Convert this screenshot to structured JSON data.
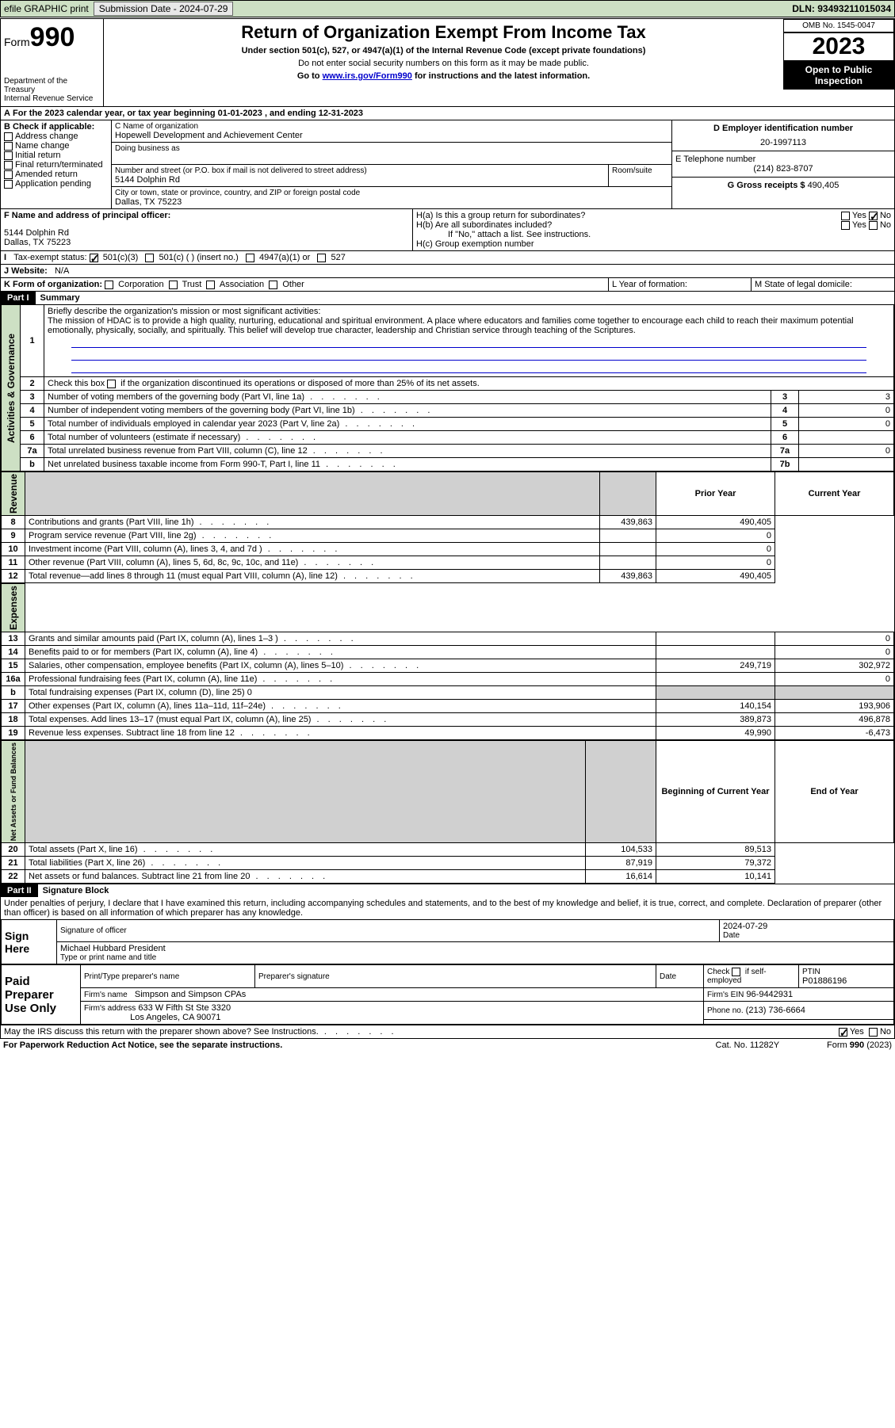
{
  "topbar": {
    "efile": "efile GRAPHIC print",
    "submission_label": "Submission Date - 2024-07-29",
    "dln": "DLN: 93493211015034"
  },
  "header": {
    "form_label": "Form",
    "form_number": "990",
    "title": "Return of Organization Exempt From Income Tax",
    "subtitle1": "Under section 501(c), 527, or 4947(a)(1) of the Internal Revenue Code (except private foundations)",
    "subtitle2": "Do not enter social security numbers on this form as it may be made public.",
    "subtitle3": "Go to www.irs.gov/Form990 for instructions and the latest information.",
    "dept": "Department of the Treasury",
    "irs": "Internal Revenue Service",
    "omb": "OMB No. 1545-0047",
    "year": "2023",
    "public1": "Open to Public",
    "public2": "Inspection"
  },
  "taxyear": "For the 2023 calendar year, or tax year beginning 01-01-2023    , and ending 12-31-2023",
  "box_b": {
    "label": "B Check if applicable:",
    "items": [
      "Address change",
      "Name change",
      "Initial return",
      "Final return/terminated",
      "Amended return",
      "Application pending"
    ]
  },
  "box_c": {
    "name_label": "C Name of organization",
    "name": "Hopewell Development and Achievement Center",
    "dba_label": "Doing business as",
    "addr_label": "Number and street (or P.O. box if mail is not delivered to street address)",
    "room_label": "Room/suite",
    "addr": "5144 Dolphin Rd",
    "city_label": "City or town, state or province, country, and ZIP or foreign postal code",
    "city": "Dallas, TX  75223"
  },
  "box_d": {
    "label": "D Employer identification number",
    "value": "20-1997113"
  },
  "box_e": {
    "label": "E Telephone number",
    "value": "(214) 823-8707"
  },
  "box_g": {
    "label": "G Gross receipts $",
    "value": "490,405"
  },
  "box_f": {
    "label": "F  Name and address of principal officer:",
    "addr1": "5144 Dolphin Rd",
    "addr2": "Dallas, TX  75223"
  },
  "box_h": {
    "ha": "H(a)  Is this a group return for subordinates?",
    "hb": "H(b)  Are all subordinates included?",
    "hb_note": "If \"No,\" attach a list. See instructions.",
    "hc": "H(c)  Group exemption number",
    "yes": "Yes",
    "no": "No"
  },
  "box_i": {
    "label": "Tax-exempt status:",
    "opts": [
      "501(c)(3)",
      "501(c) (  ) (insert no.)",
      "4947(a)(1) or",
      "527"
    ]
  },
  "box_j": {
    "label": "J   Website:",
    "value": "N/A"
  },
  "box_k": {
    "label": "K Form of organization:",
    "opts": [
      "Corporation",
      "Trust",
      "Association",
      "Other"
    ]
  },
  "box_l": "L Year of formation:",
  "box_m": "M State of legal domicile:",
  "part1": {
    "hdr": "Part I",
    "title": "Summary",
    "q1_label": "Briefly describe the organization's mission or most significant activities:",
    "mission": "The mission of HDAC is to provide a high quality, nurturing, educational and spiritual environment. A place where educators and families come together to encourage each child to reach their maximum potential emotionally, physically, socially, and spiritually. This belief will develop true character, leadership and Christian service through teaching of the Scriptures.",
    "q2": "Check this box        if the organization discontinued its operations or disposed of more than 25% of its net assets.",
    "vlabel_ag": "Activities & Governance",
    "vlabel_rev": "Revenue",
    "vlabel_exp": "Expenses",
    "vlabel_na": "Net Assets or Fund Balances",
    "rows_ag": [
      {
        "n": "3",
        "t": "Number of voting members of the governing body (Part VI, line 1a)",
        "r": "3",
        "v": "3"
      },
      {
        "n": "4",
        "t": "Number of independent voting members of the governing body (Part VI, line 1b)",
        "r": "4",
        "v": "0"
      },
      {
        "n": "5",
        "t": "Total number of individuals employed in calendar year 2023 (Part V, line 2a)",
        "r": "5",
        "v": "0"
      },
      {
        "n": "6",
        "t": "Total number of volunteers (estimate if necessary)",
        "r": "6",
        "v": ""
      },
      {
        "n": "7a",
        "t": "Total unrelated business revenue from Part VIII, column (C), line 12",
        "r": "7a",
        "v": "0"
      },
      {
        "n": "b",
        "t": "Net unrelated business taxable income from Form 990-T, Part I, line 11",
        "r": "7b",
        "v": ""
      }
    ],
    "col_prior": "Prior Year",
    "col_current": "Current Year",
    "rows_rev": [
      {
        "n": "8",
        "t": "Contributions and grants (Part VIII, line 1h)",
        "p": "439,863",
        "c": "490,405"
      },
      {
        "n": "9",
        "t": "Program service revenue (Part VIII, line 2g)",
        "p": "",
        "c": "0"
      },
      {
        "n": "10",
        "t": "Investment income (Part VIII, column (A), lines 3, 4, and 7d )",
        "p": "",
        "c": "0"
      },
      {
        "n": "11",
        "t": "Other revenue (Part VIII, column (A), lines 5, 6d, 8c, 9c, 10c, and 11e)",
        "p": "",
        "c": "0"
      },
      {
        "n": "12",
        "t": "Total revenue—add lines 8 through 11 (must equal Part VIII, column (A), line 12)",
        "p": "439,863",
        "c": "490,405"
      }
    ],
    "rows_exp": [
      {
        "n": "13",
        "t": "Grants and similar amounts paid (Part IX, column (A), lines 1–3 )",
        "p": "",
        "c": "0"
      },
      {
        "n": "14",
        "t": "Benefits paid to or for members (Part IX, column (A), line 4)",
        "p": "",
        "c": "0"
      },
      {
        "n": "15",
        "t": "Salaries, other compensation, employee benefits (Part IX, column (A), lines 5–10)",
        "p": "249,719",
        "c": "302,972"
      },
      {
        "n": "16a",
        "t": "Professional fundraising fees (Part IX, column (A), line 11e)",
        "p": "",
        "c": "0"
      },
      {
        "n": "b",
        "t": "Total fundraising expenses (Part IX, column (D), line 25) 0",
        "p": "grey",
        "c": "grey"
      },
      {
        "n": "17",
        "t": "Other expenses (Part IX, column (A), lines 11a–11d, 11f–24e)",
        "p": "140,154",
        "c": "193,906"
      },
      {
        "n": "18",
        "t": "Total expenses. Add lines 13–17 (must equal Part IX, column (A), line 25)",
        "p": "389,873",
        "c": "496,878"
      },
      {
        "n": "19",
        "t": "Revenue less expenses. Subtract line 18 from line 12",
        "p": "49,990",
        "c": "-6,473"
      }
    ],
    "col_begin": "Beginning of Current Year",
    "col_end": "End of Year",
    "rows_na": [
      {
        "n": "20",
        "t": "Total assets (Part X, line 16)",
        "p": "104,533",
        "c": "89,513"
      },
      {
        "n": "21",
        "t": "Total liabilities (Part X, line 26)",
        "p": "87,919",
        "c": "79,372"
      },
      {
        "n": "22",
        "t": "Net assets or fund balances. Subtract line 21 from line 20",
        "p": "16,614",
        "c": "10,141"
      }
    ]
  },
  "part2": {
    "hdr": "Part II",
    "title": "Signature Block",
    "decl": "Under penalties of perjury, I declare that I have examined this return, including accompanying schedules and statements, and to the best of my knowledge and belief, it is true, correct, and complete. Declaration of preparer (other than officer) is based on all information of which preparer has any knowledge.",
    "sign_here": "Sign Here",
    "sig_label": "Signature of officer",
    "date_label": "Date",
    "date_value": "2024-07-29",
    "officer": "Michael Hubbard  President",
    "officer_label": "Type or print name and title",
    "paid": "Paid Preparer Use Only",
    "prep_name_label": "Print/Type preparer's name",
    "prep_sig_label": "Preparer's signature",
    "check_self": "Check         if self-employed",
    "ptin_label": "PTIN",
    "ptin": "P01886196",
    "firm_name_label": "Firm's name",
    "firm_name": "Simpson and Simpson CPAs",
    "firm_ein_label": "Firm's EIN",
    "firm_ein": "96-9442931",
    "firm_addr_label": "Firm's address",
    "firm_addr1": "633 W Fifth St Ste 3320",
    "firm_addr2": "Los Angeles, CA  90071",
    "phone_label": "Phone no.",
    "phone": "(213) 736-6664",
    "discuss": "May the IRS discuss this return with the preparer shown above? See Instructions.",
    "paperwork": "For Paperwork Reduction Act Notice, see the separate instructions.",
    "cat": "Cat. No. 11282Y",
    "form": "Form 990 (2023)"
  }
}
